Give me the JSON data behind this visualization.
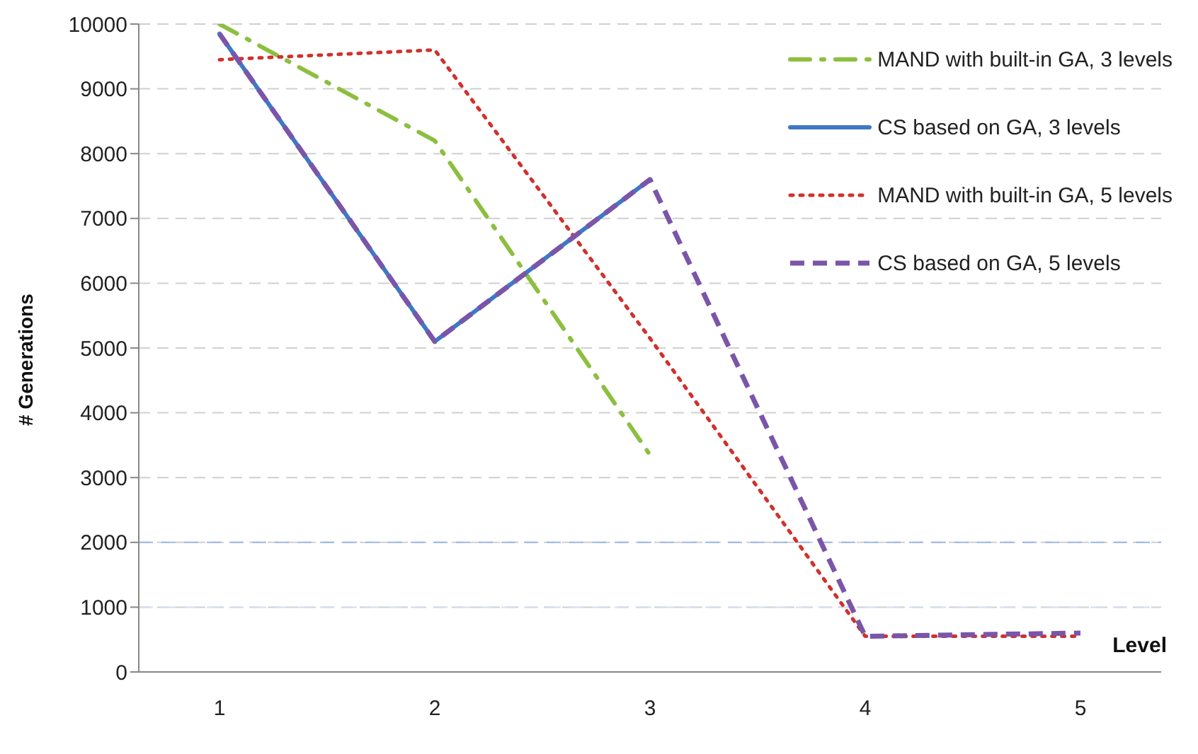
{
  "chart_data": {
    "type": "line",
    "xlabel": "Level",
    "ylabel": "# Generations",
    "categories": [
      "1",
      "2",
      "3",
      "4",
      "5"
    ],
    "series": [
      {
        "name": "MAND with built-in GA, 3 levels",
        "color": "#8cbf3f",
        "line_style": "dashdot",
        "values": [
          10000,
          8200,
          3350,
          null,
          null
        ]
      },
      {
        "name": "CS based on GA, 3 levels",
        "color": "#3f78c4",
        "line_style": "solid",
        "values": [
          9850,
          5100,
          7600,
          null,
          null
        ]
      },
      {
        "name": "MAND with built-in GA, 5 levels",
        "color": "#d0312d",
        "line_style": "dotted",
        "values": [
          9450,
          9600,
          5150,
          550,
          550
        ]
      },
      {
        "name": "CS based on GA, 5 levels",
        "color": "#7a55a8",
        "line_style": "dashed",
        "values": [
          9850,
          5100,
          7600,
          550,
          600
        ]
      }
    ],
    "ylim": [
      0,
      10000
    ],
    "yticks": [
      0,
      1000,
      2000,
      3000,
      4000,
      5000,
      6000,
      7000,
      8000,
      9000,
      10000
    ],
    "grid": "y",
    "legend": "top right",
    "marker": "none",
    "ref_lines": [
      {
        "axis": "y",
        "value": 2000,
        "color": "#9db8e6",
        "line_style": "dashed"
      },
      {
        "axis": "y",
        "value": 1000,
        "color": "#d3def3",
        "line_style": "dashed"
      }
    ]
  }
}
